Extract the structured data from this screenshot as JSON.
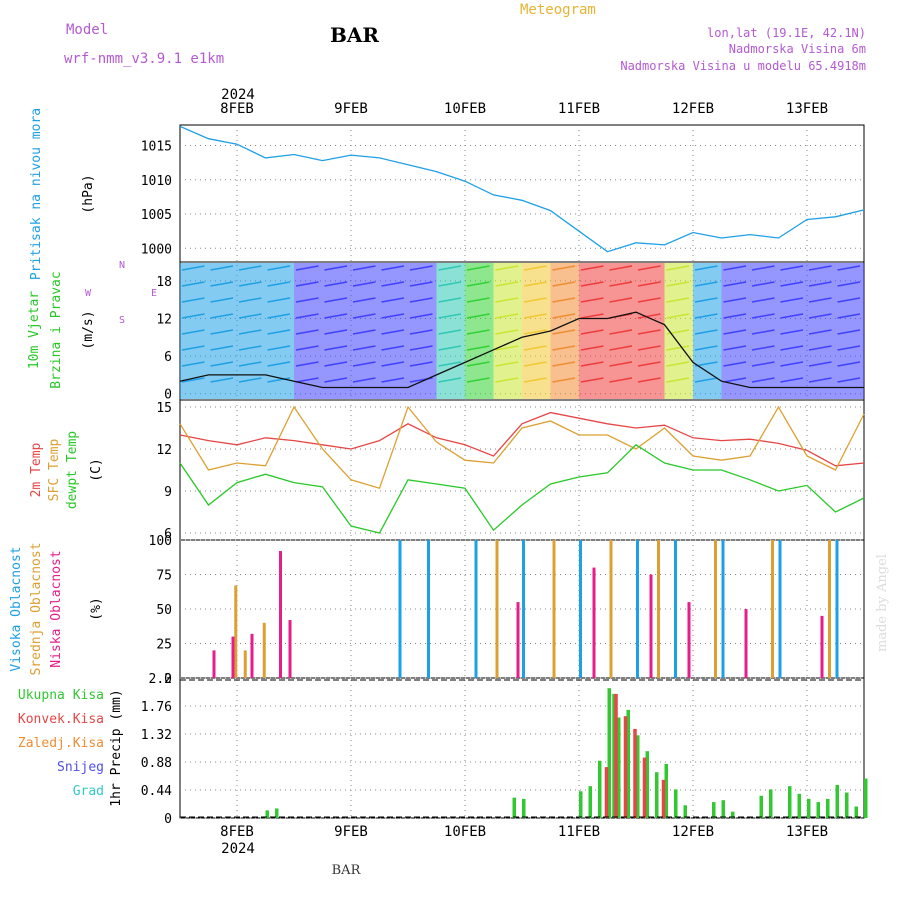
{
  "header": {
    "model_label": "Model",
    "model_name": "wrf-nmm_v3.9.1 e1km",
    "station": "BAR",
    "meteogram": "Meteogram",
    "lonlat": "lon,lat (19.1E, 42.1N)",
    "elevation": "Nadmorska Visina 6m",
    "model_elevation": "Nadmorska Visina u modelu 65.4918m",
    "year_top": "2024",
    "footer_station": "BAR",
    "year_bottom": "2024",
    "credit": "made by Angel"
  },
  "colors": {
    "pressure": "#1ea0e6",
    "temp2m": "#e64646",
    "sfc": "#dca032",
    "dewpt": "#28c828",
    "high_cloud": "#1ea0e6",
    "mid_cloud": "#dca032",
    "low_cloud": "#e61e8c",
    "total_precip": "#32c832",
    "conv_precip": "#e64646",
    "freezing": "#f08c32",
    "snow": "#5050e6",
    "hail": "#32c8c8",
    "purple_text": "#b45ad2",
    "orange_text": "#e6b432"
  },
  "chart_data": [
    {
      "type": "line",
      "panel": "pressure",
      "ylabel": "Pritisak na nivou mora",
      "unit": "(hPa)",
      "x_start": "2024-02-07 12:00",
      "x_end": "2024-02-13 12:00",
      "x_ticks": [
        "8FEB",
        "9FEB",
        "10FEB",
        "11FEB",
        "12FEB",
        "13FEB"
      ],
      "yticks": [
        1000,
        1005,
        1010,
        1015
      ],
      "ylim": [
        998,
        1018
      ],
      "grid": true,
      "series": [
        {
          "name": "Pritisak na nivou mora",
          "x": [
            "2024-02-07 12:00",
            "2024-02-07 18:00",
            "2024-02-08 00:00",
            "2024-02-08 06:00",
            "2024-02-08 12:00",
            "2024-02-08 18:00",
            "2024-02-09 00:00",
            "2024-02-09 06:00",
            "2024-02-09 12:00",
            "2024-02-09 18:00",
            "2024-02-10 00:00",
            "2024-02-10 06:00",
            "2024-02-10 12:00",
            "2024-02-10 18:00",
            "2024-02-11 00:00",
            "2024-02-11 06:00",
            "2024-02-11 12:00",
            "2024-02-11 18:00",
            "2024-02-12 00:00",
            "2024-02-12 06:00",
            "2024-02-12 12:00",
            "2024-02-12 18:00",
            "2024-02-13 00:00",
            "2024-02-13 06:00",
            "2024-02-13 12:00"
          ],
          "values": [
            1017.8,
            1016.0,
            1015.2,
            1013.2,
            1013.7,
            1012.8,
            1013.6,
            1013.2,
            1012.2,
            1011.2,
            1009.8,
            1007.8,
            1007.0,
            1005.5,
            1002.5,
            999.5,
            1000.8,
            1000.5,
            1002.3,
            1001.5,
            1002.0,
            1001.5,
            1004.2,
            1004.6,
            1005.6
          ]
        }
      ]
    },
    {
      "type": "line",
      "panel": "wind",
      "ylabel": [
        "10m Vjetar",
        "Brzina i Pravac"
      ],
      "unit": "(m/s)",
      "compass": {
        "north": "N",
        "south": "S",
        "east": "E",
        "west": "W"
      },
      "yticks": [
        0,
        6,
        12,
        18
      ],
      "ylim": [
        -1,
        21
      ],
      "grid": true,
      "series": [
        {
          "name": "Brzina",
          "x": [
            "2024-02-07 12:00",
            "2024-02-07 18:00",
            "2024-02-08 00:00",
            "2024-02-08 06:00",
            "2024-02-08 12:00",
            "2024-02-08 18:00",
            "2024-02-09 00:00",
            "2024-02-09 06:00",
            "2024-02-09 12:00",
            "2024-02-09 18:00",
            "2024-02-10 00:00",
            "2024-02-10 06:00",
            "2024-02-10 12:00",
            "2024-02-10 18:00",
            "2024-02-11 00:00",
            "2024-02-11 06:00",
            "2024-02-11 12:00",
            "2024-02-11 18:00",
            "2024-02-12 00:00",
            "2024-02-12 06:00",
            "2024-02-12 12:00",
            "2024-02-12 18:00",
            "2024-02-13 00:00",
            "2024-02-13 06:00",
            "2024-02-13 12:00"
          ],
          "values": [
            2,
            3,
            3,
            3,
            2,
            1,
            1,
            1,
            1,
            3,
            5,
            7,
            9,
            10,
            12,
            12,
            13,
            11,
            5,
            2,
            1,
            1,
            1,
            1,
            1
          ]
        }
      ]
    },
    {
      "type": "line",
      "panel": "temperature",
      "ylabel": [
        "2m Temp",
        "SFC Temp",
        "dewpt Temp"
      ],
      "unit": "(C)",
      "yticks": [
        6,
        9,
        12,
        15
      ],
      "ylim": [
        5.5,
        15.5
      ],
      "grid": true,
      "series": [
        {
          "name": "2m Temp",
          "x": [
            "2024-02-07 12:00",
            "2024-02-07 18:00",
            "2024-02-08 00:00",
            "2024-02-08 06:00",
            "2024-02-08 12:00",
            "2024-02-08 18:00",
            "2024-02-09 00:00",
            "2024-02-09 06:00",
            "2024-02-09 12:00",
            "2024-02-09 18:00",
            "2024-02-10 00:00",
            "2024-02-10 06:00",
            "2024-02-10 12:00",
            "2024-02-10 18:00",
            "2024-02-11 00:00",
            "2024-02-11 06:00",
            "2024-02-11 12:00",
            "2024-02-11 18:00",
            "2024-02-12 00:00",
            "2024-02-12 06:00",
            "2024-02-12 12:00",
            "2024-02-12 18:00",
            "2024-02-13 00:00",
            "2024-02-13 06:00",
            "2024-02-13 12:00"
          ],
          "values": [
            13.0,
            12.6,
            12.3,
            12.8,
            12.6,
            12.3,
            12.0,
            12.6,
            13.8,
            12.8,
            12.3,
            11.5,
            13.8,
            14.6,
            14.2,
            13.8,
            13.5,
            13.7,
            12.8,
            12.6,
            12.7,
            12.4,
            11.9,
            10.8,
            11.0
          ]
        },
        {
          "name": "SFC Temp",
          "x": [
            "2024-02-07 12:00",
            "2024-02-07 18:00",
            "2024-02-08 00:00",
            "2024-02-08 06:00",
            "2024-02-08 12:00",
            "2024-02-08 18:00",
            "2024-02-09 00:00",
            "2024-02-09 06:00",
            "2024-02-09 12:00",
            "2024-02-09 18:00",
            "2024-02-10 00:00",
            "2024-02-10 06:00",
            "2024-02-10 12:00",
            "2024-02-10 18:00",
            "2024-02-11 00:00",
            "2024-02-11 06:00",
            "2024-02-11 12:00",
            "2024-02-11 18:00",
            "2024-02-12 00:00",
            "2024-02-12 06:00",
            "2024-02-12 12:00",
            "2024-02-12 18:00",
            "2024-02-13 00:00",
            "2024-02-13 06:00",
            "2024-02-13 12:00"
          ],
          "values": [
            13.8,
            10.5,
            11.0,
            10.8,
            15.0,
            12.0,
            9.8,
            9.2,
            15.0,
            12.5,
            11.2,
            11.0,
            13.5,
            14.0,
            13.0,
            13.0,
            12.0,
            13.5,
            11.5,
            11.2,
            11.5,
            15.0,
            11.5,
            10.5,
            14.5
          ]
        },
        {
          "name": "dewpt Temp",
          "x": [
            "2024-02-07 12:00",
            "2024-02-07 18:00",
            "2024-02-08 00:00",
            "2024-02-08 06:00",
            "2024-02-08 12:00",
            "2024-02-08 18:00",
            "2024-02-09 00:00",
            "2024-02-09 06:00",
            "2024-02-09 12:00",
            "2024-02-09 18:00",
            "2024-02-10 00:00",
            "2024-02-10 06:00",
            "2024-02-10 12:00",
            "2024-02-10 18:00",
            "2024-02-11 00:00",
            "2024-02-11 06:00",
            "2024-02-11 12:00",
            "2024-02-11 18:00",
            "2024-02-12 00:00",
            "2024-02-12 06:00",
            "2024-02-12 12:00",
            "2024-02-12 18:00",
            "2024-02-13 00:00",
            "2024-02-13 06:00",
            "2024-02-13 12:00"
          ],
          "values": [
            11.0,
            8.0,
            9.6,
            10.2,
            9.6,
            9.3,
            6.5,
            6.0,
            9.8,
            9.5,
            9.2,
            6.2,
            8.0,
            9.5,
            10.0,
            10.3,
            12.3,
            11.0,
            10.5,
            10.5,
            9.8,
            9.0,
            9.4,
            7.5,
            8.5
          ]
        }
      ]
    },
    {
      "type": "bar",
      "panel": "cloud_cover",
      "ylabel": [
        "Visoka Oblacnost",
        "Srednja Oblacnost",
        "Niska Oblacnost"
      ],
      "unit": "(%)",
      "yticks": [
        0,
        25,
        50,
        75,
        100
      ],
      "ylim": [
        0,
        100
      ],
      "grid": true,
      "series": [
        {
          "name": "Visoka Oblacnost",
          "x": [
            "2024-02-09 10:00",
            "2024-02-09 16:00",
            "2024-02-10 02:00",
            "2024-02-10 12:00",
            "2024-02-11 00:00",
            "2024-02-11 12:00",
            "2024-02-11 20:00",
            "2024-02-12 06:00",
            "2024-02-12 18:00",
            "2024-02-13 06:00"
          ],
          "values": [
            100,
            100,
            100,
            100,
            100,
            100,
            100,
            100,
            100,
            100
          ]
        },
        {
          "name": "Srednja Oblacnost",
          "x": [
            "2024-02-07 23:00",
            "2024-02-08 01:00",
            "2024-02-08 05:00",
            "2024-02-10 06:00",
            "2024-02-10 18:00",
            "2024-02-11 06:00",
            "2024-02-11 16:00",
            "2024-02-12 04:00",
            "2024-02-12 16:00",
            "2024-02-13 04:00"
          ],
          "values": [
            67,
            20,
            40,
            100,
            100,
            100,
            100,
            100,
            100,
            100
          ]
        },
        {
          "name": "Niska Oblacnost",
          "x": [
            "2024-02-07 18:00",
            "2024-02-07 22:00",
            "2024-02-08 02:00",
            "2024-02-08 08:00",
            "2024-02-08 10:00",
            "2024-02-10 10:00",
            "2024-02-11 02:00",
            "2024-02-11 14:00",
            "2024-02-11 22:00",
            "2024-02-12 10:00",
            "2024-02-13 02:00"
          ],
          "values": [
            20,
            30,
            32,
            92,
            42,
            55,
            80,
            75,
            55,
            50,
            45
          ]
        }
      ]
    },
    {
      "type": "bar",
      "panel": "precipitation",
      "ylabel": "1hr Precip",
      "unit": "(mm)",
      "legend": [
        "Ukupna Kisa",
        "Konvek.Kisa",
        "Zaledj.Kisa",
        "Snijeg",
        "Grad"
      ],
      "yticks": [
        0,
        0.44,
        0.88,
        1.32,
        1.76,
        2.2
      ],
      "ylim": [
        0,
        2.2
      ],
      "grid": true,
      "series": [
        {
          "name": "Ukupna Kisa",
          "x": [
            "2024-02-08 06:00",
            "2024-02-08 08:00",
            "2024-02-10 10:00",
            "2024-02-10 12:00",
            "2024-02-11 00:00",
            "2024-02-11 02:00",
            "2024-02-11 04:00",
            "2024-02-11 06:00",
            "2024-02-11 07:00",
            "2024-02-11 08:00",
            "2024-02-11 10:00",
            "2024-02-11 12:00",
            "2024-02-11 14:00",
            "2024-02-11 16:00",
            "2024-02-11 18:00",
            "2024-02-11 20:00",
            "2024-02-11 22:00",
            "2024-02-12 04:00",
            "2024-02-12 06:00",
            "2024-02-12 08:00",
            "2024-02-12 14:00",
            "2024-02-12 16:00",
            "2024-02-12 20:00",
            "2024-02-12 22:00",
            "2024-02-13 00:00",
            "2024-02-13 02:00",
            "2024-02-13 04:00",
            "2024-02-13 06:00",
            "2024-02-13 08:00",
            "2024-02-13 10:00",
            "2024-02-13 12:00"
          ],
          "values": [
            0.12,
            0.15,
            0.32,
            0.3,
            0.42,
            0.5,
            0.9,
            2.04,
            1.95,
            1.58,
            1.7,
            1.3,
            1.05,
            0.72,
            0.85,
            0.45,
            0.2,
            0.25,
            0.28,
            0.1,
            0.35,
            0.45,
            0.5,
            0.38,
            0.3,
            0.25,
            0.3,
            0.52,
            0.4,
            0.18,
            0.62
          ]
        },
        {
          "name": "Konvek.Kisa",
          "x": [
            "2024-02-11 05:00",
            "2024-02-11 07:00",
            "2024-02-11 09:00",
            "2024-02-11 11:00",
            "2024-02-11 13:00",
            "2024-02-11 17:00"
          ],
          "values": [
            0.8,
            1.95,
            1.6,
            1.4,
            0.95,
            0.6
          ]
        }
      ]
    }
  ]
}
